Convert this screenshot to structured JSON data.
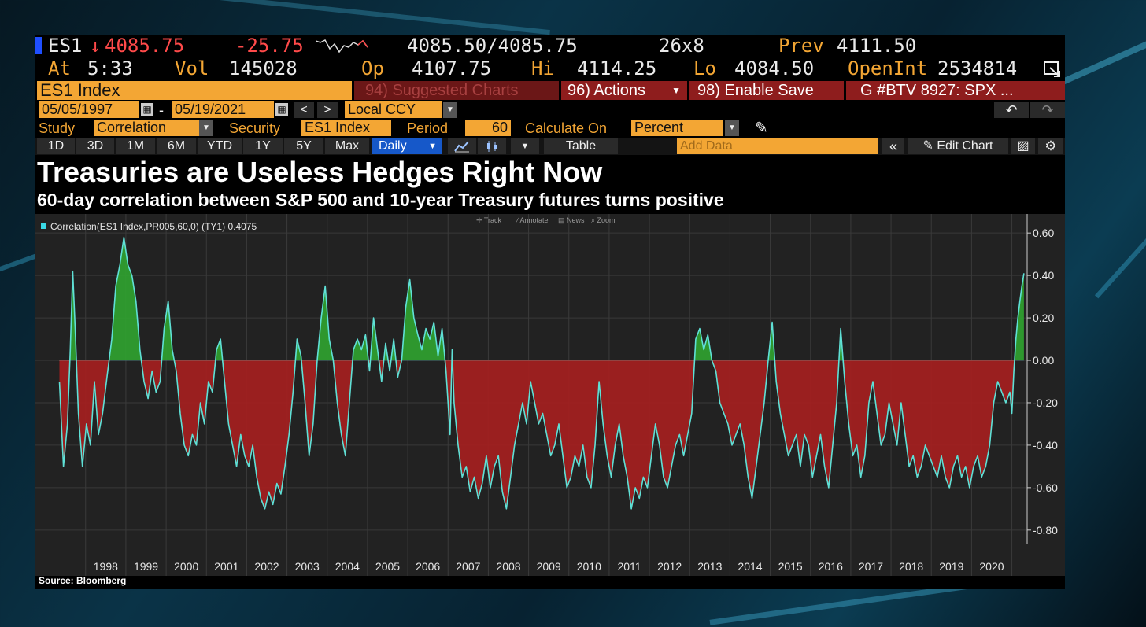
{
  "ticker": {
    "symbol": "ES1",
    "arrow": "↓",
    "last": "4085.75",
    "change": "-25.75",
    "bid_ask": "4085.50/4085.75",
    "size": "26x8",
    "prev_label": "Prev",
    "prev": "4111.50"
  },
  "stats": {
    "at_label": "At",
    "time": "5:33",
    "vol_label": "Vol",
    "vol": "145028",
    "op_label": "Op",
    "op": "4107.75",
    "hi_label": "Hi",
    "hi": "4114.25",
    "lo_label": "Lo",
    "lo": "4084.50",
    "openint_label": "OpenInt",
    "openint": "2534814"
  },
  "command": {
    "security": "ES1 Index",
    "suggested": "94) Suggested Charts",
    "actions": "96) Actions",
    "enable_save": "98) Enable Save",
    "news": "G #BTV 8927: SPX ..."
  },
  "range": {
    "start": "05/05/1997",
    "dash": "-",
    "end": "05/19/2021",
    "currency": "Local CCY"
  },
  "study": {
    "study_label": "Study",
    "study": "Correlation",
    "security_label": "Security",
    "security": "ES1 Index",
    "period_label": "Period",
    "period": "60",
    "calc_label": "Calculate On",
    "calc": "Percent"
  },
  "toolbar": {
    "periods": [
      "1D",
      "3D",
      "1M",
      "6M",
      "YTD",
      "1Y",
      "5Y",
      "Max"
    ],
    "freq": "Daily",
    "table": "Table",
    "add_data": "Add Data",
    "edit_chart": "Edit Chart"
  },
  "plot_tools": [
    "Track",
    "Annotate",
    "News",
    "Zoom"
  ],
  "colors": {
    "positive_fill": "#2f9e2f",
    "negative_fill": "#a12020",
    "line": "#5fe0d6",
    "accent": "#f3a634"
  },
  "chart_data": {
    "type": "area",
    "title": "Treasuries are Useless Hedges Right Now",
    "subtitle": "60-day correlation between S&P 500 and 10-year Treasury futures turns positive",
    "legend": "Correlation(ES1 Index,PR005,60,0) (TY1) 0.4075",
    "series_name": "Correlation(ES1 Index,PR005,60,0) (TY1)",
    "last_value": 0.4075,
    "x_labels": [
      "1998",
      "1999",
      "2000",
      "2001",
      "2002",
      "2003",
      "2004",
      "2005",
      "2006",
      "2007",
      "2008",
      "2009",
      "2010",
      "2011",
      "2012",
      "2013",
      "2014",
      "2015",
      "2016",
      "2017",
      "2018",
      "2019",
      "2020"
    ],
    "y_ticks": [
      "0.60",
      "0.40",
      "0.20",
      "0.00",
      "-0.20",
      "-0.40",
      "-0.60",
      "-0.80"
    ],
    "ylim": [
      -0.86,
      0.66
    ],
    "xlim": [
      1997.34,
      2021.38
    ],
    "grid": true,
    "source": "Source: Bloomberg",
    "points": [
      [
        1997.35,
        -0.1
      ],
      [
        1997.45,
        -0.5
      ],
      [
        1997.55,
        -0.3
      ],
      [
        1997.62,
        0.05
      ],
      [
        1997.68,
        0.42
      ],
      [
        1997.74,
        0.15
      ],
      [
        1997.82,
        -0.25
      ],
      [
        1997.92,
        -0.5
      ],
      [
        1998.02,
        -0.3
      ],
      [
        1998.12,
        -0.4
      ],
      [
        1998.22,
        -0.1
      ],
      [
        1998.32,
        -0.35
      ],
      [
        1998.42,
        -0.25
      ],
      [
        1998.55,
        -0.05
      ],
      [
        1998.65,
        0.1
      ],
      [
        1998.75,
        0.35
      ],
      [
        1998.85,
        0.45
      ],
      [
        1998.95,
        0.58
      ],
      [
        1999.05,
        0.45
      ],
      [
        1999.15,
        0.4
      ],
      [
        1999.25,
        0.28
      ],
      [
        1999.35,
        0.05
      ],
      [
        1999.45,
        -0.1
      ],
      [
        1999.55,
        -0.18
      ],
      [
        1999.65,
        -0.05
      ],
      [
        1999.75,
        -0.15
      ],
      [
        1999.85,
        -0.1
      ],
      [
        1999.95,
        0.15
      ],
      [
        2000.05,
        0.28
      ],
      [
        2000.15,
        0.05
      ],
      [
        2000.25,
        -0.05
      ],
      [
        2000.35,
        -0.25
      ],
      [
        2000.45,
        -0.4
      ],
      [
        2000.55,
        -0.45
      ],
      [
        2000.65,
        -0.35
      ],
      [
        2000.75,
        -0.4
      ],
      [
        2000.85,
        -0.2
      ],
      [
        2000.95,
        -0.3
      ],
      [
        2001.05,
        -0.1
      ],
      [
        2001.15,
        -0.15
      ],
      [
        2001.25,
        0.05
      ],
      [
        2001.35,
        0.1
      ],
      [
        2001.45,
        -0.1
      ],
      [
        2001.55,
        -0.3
      ],
      [
        2001.65,
        -0.4
      ],
      [
        2001.75,
        -0.5
      ],
      [
        2001.85,
        -0.35
      ],
      [
        2001.95,
        -0.45
      ],
      [
        2002.05,
        -0.5
      ],
      [
        2002.15,
        -0.4
      ],
      [
        2002.25,
        -0.55
      ],
      [
        2002.35,
        -0.65
      ],
      [
        2002.45,
        -0.7
      ],
      [
        2002.55,
        -0.62
      ],
      [
        2002.65,
        -0.68
      ],
      [
        2002.75,
        -0.58
      ],
      [
        2002.85,
        -0.63
      ],
      [
        2002.95,
        -0.5
      ],
      [
        2003.05,
        -0.35
      ],
      [
        2003.15,
        -0.15
      ],
      [
        2003.25,
        0.1
      ],
      [
        2003.35,
        0.02
      ],
      [
        2003.45,
        -0.2
      ],
      [
        2003.55,
        -0.45
      ],
      [
        2003.65,
        -0.3
      ],
      [
        2003.75,
        0.0
      ],
      [
        2003.85,
        0.2
      ],
      [
        2003.95,
        0.35
      ],
      [
        2004.05,
        0.1
      ],
      [
        2004.15,
        0.0
      ],
      [
        2004.25,
        -0.2
      ],
      [
        2004.35,
        -0.35
      ],
      [
        2004.45,
        -0.45
      ],
      [
        2004.55,
        -0.2
      ],
      [
        2004.65,
        0.05
      ],
      [
        2004.75,
        0.1
      ],
      [
        2004.85,
        0.05
      ],
      [
        2004.95,
        0.12
      ],
      [
        2005.05,
        -0.05
      ],
      [
        2005.15,
        0.2
      ],
      [
        2005.25,
        0.05
      ],
      [
        2005.35,
        -0.1
      ],
      [
        2005.45,
        0.08
      ],
      [
        2005.55,
        -0.05
      ],
      [
        2005.65,
        0.1
      ],
      [
        2005.75,
        -0.08
      ],
      [
        2005.85,
        0.0
      ],
      [
        2005.95,
        0.25
      ],
      [
        2006.05,
        0.38
      ],
      [
        2006.15,
        0.2
      ],
      [
        2006.25,
        0.12
      ],
      [
        2006.35,
        0.05
      ],
      [
        2006.45,
        0.15
      ],
      [
        2006.55,
        0.1
      ],
      [
        2006.65,
        0.18
      ],
      [
        2006.75,
        0.02
      ],
      [
        2006.85,
        0.15
      ],
      [
        2006.95,
        -0.05
      ],
      [
        2007.05,
        -0.35
      ],
      [
        2007.1,
        0.05
      ],
      [
        2007.15,
        -0.2
      ],
      [
        2007.25,
        -0.4
      ],
      [
        2007.35,
        -0.55
      ],
      [
        2007.45,
        -0.5
      ],
      [
        2007.55,
        -0.62
      ],
      [
        2007.65,
        -0.55
      ],
      [
        2007.75,
        -0.65
      ],
      [
        2007.85,
        -0.58
      ],
      [
        2007.95,
        -0.45
      ],
      [
        2008.05,
        -0.6
      ],
      [
        2008.15,
        -0.5
      ],
      [
        2008.25,
        -0.45
      ],
      [
        2008.35,
        -0.62
      ],
      [
        2008.45,
        -0.7
      ],
      [
        2008.55,
        -0.55
      ],
      [
        2008.65,
        -0.4
      ],
      [
        2008.75,
        -0.3
      ],
      [
        2008.85,
        -0.2
      ],
      [
        2008.95,
        -0.3
      ],
      [
        2009.05,
        -0.1
      ],
      [
        2009.15,
        -0.2
      ],
      [
        2009.25,
        -0.3
      ],
      [
        2009.35,
        -0.25
      ],
      [
        2009.45,
        -0.35
      ],
      [
        2009.55,
        -0.45
      ],
      [
        2009.65,
        -0.4
      ],
      [
        2009.75,
        -0.3
      ],
      [
        2009.85,
        -0.45
      ],
      [
        2009.95,
        -0.6
      ],
      [
        2010.05,
        -0.55
      ],
      [
        2010.15,
        -0.45
      ],
      [
        2010.25,
        -0.5
      ],
      [
        2010.35,
        -0.4
      ],
      [
        2010.45,
        -0.55
      ],
      [
        2010.55,
        -0.6
      ],
      [
        2010.65,
        -0.4
      ],
      [
        2010.75,
        -0.1
      ],
      [
        2010.85,
        -0.3
      ],
      [
        2010.95,
        -0.45
      ],
      [
        2011.05,
        -0.55
      ],
      [
        2011.15,
        -0.4
      ],
      [
        2011.25,
        -0.3
      ],
      [
        2011.35,
        -0.45
      ],
      [
        2011.45,
        -0.55
      ],
      [
        2011.55,
        -0.7
      ],
      [
        2011.65,
        -0.6
      ],
      [
        2011.75,
        -0.65
      ],
      [
        2011.85,
        -0.55
      ],
      [
        2011.95,
        -0.6
      ],
      [
        2012.05,
        -0.45
      ],
      [
        2012.15,
        -0.3
      ],
      [
        2012.25,
        -0.4
      ],
      [
        2012.35,
        -0.55
      ],
      [
        2012.45,
        -0.6
      ],
      [
        2012.55,
        -0.5
      ],
      [
        2012.65,
        -0.4
      ],
      [
        2012.75,
        -0.35
      ],
      [
        2012.85,
        -0.45
      ],
      [
        2012.95,
        -0.35
      ],
      [
        2013.05,
        -0.25
      ],
      [
        2013.15,
        0.1
      ],
      [
        2013.25,
        0.15
      ],
      [
        2013.35,
        0.05
      ],
      [
        2013.45,
        0.12
      ],
      [
        2013.55,
        0.0
      ],
      [
        2013.65,
        -0.05
      ],
      [
        2013.75,
        -0.2
      ],
      [
        2013.85,
        -0.25
      ],
      [
        2013.95,
        -0.3
      ],
      [
        2014.05,
        -0.4
      ],
      [
        2014.15,
        -0.35
      ],
      [
        2014.25,
        -0.3
      ],
      [
        2014.35,
        -0.4
      ],
      [
        2014.45,
        -0.55
      ],
      [
        2014.55,
        -0.65
      ],
      [
        2014.65,
        -0.5
      ],
      [
        2014.75,
        -0.35
      ],
      [
        2014.85,
        -0.2
      ],
      [
        2014.95,
        0.0
      ],
      [
        2015.05,
        0.18
      ],
      [
        2015.15,
        -0.1
      ],
      [
        2015.25,
        -0.25
      ],
      [
        2015.35,
        -0.35
      ],
      [
        2015.45,
        -0.45
      ],
      [
        2015.55,
        -0.4
      ],
      [
        2015.65,
        -0.35
      ],
      [
        2015.75,
        -0.5
      ],
      [
        2015.85,
        -0.35
      ],
      [
        2015.95,
        -0.4
      ],
      [
        2016.05,
        -0.55
      ],
      [
        2016.15,
        -0.45
      ],
      [
        2016.25,
        -0.35
      ],
      [
        2016.35,
        -0.5
      ],
      [
        2016.45,
        -0.6
      ],
      [
        2016.55,
        -0.4
      ],
      [
        2016.65,
        -0.2
      ],
      [
        2016.75,
        0.15
      ],
      [
        2016.85,
        -0.1
      ],
      [
        2016.95,
        -0.3
      ],
      [
        2017.05,
        -0.45
      ],
      [
        2017.15,
        -0.4
      ],
      [
        2017.25,
        -0.55
      ],
      [
        2017.35,
        -0.45
      ],
      [
        2017.45,
        -0.2
      ],
      [
        2017.55,
        -0.1
      ],
      [
        2017.65,
        -0.25
      ],
      [
        2017.75,
        -0.4
      ],
      [
        2017.85,
        -0.35
      ],
      [
        2017.95,
        -0.2
      ],
      [
        2018.05,
        -0.3
      ],
      [
        2018.15,
        -0.4
      ],
      [
        2018.25,
        -0.2
      ],
      [
        2018.35,
        -0.35
      ],
      [
        2018.45,
        -0.5
      ],
      [
        2018.55,
        -0.45
      ],
      [
        2018.65,
        -0.55
      ],
      [
        2018.75,
        -0.5
      ],
      [
        2018.85,
        -0.4
      ],
      [
        2018.95,
        -0.45
      ],
      [
        2019.05,
        -0.5
      ],
      [
        2019.15,
        -0.55
      ],
      [
        2019.25,
        -0.45
      ],
      [
        2019.35,
        -0.55
      ],
      [
        2019.45,
        -0.6
      ],
      [
        2019.55,
        -0.5
      ],
      [
        2019.65,
        -0.45
      ],
      [
        2019.75,
        -0.55
      ],
      [
        2019.85,
        -0.5
      ],
      [
        2019.95,
        -0.6
      ],
      [
        2020.05,
        -0.5
      ],
      [
        2020.15,
        -0.45
      ],
      [
        2020.25,
        -0.55
      ],
      [
        2020.35,
        -0.5
      ],
      [
        2020.45,
        -0.4
      ],
      [
        2020.55,
        -0.2
      ],
      [
        2020.65,
        -0.1
      ],
      [
        2020.75,
        -0.15
      ],
      [
        2020.85,
        -0.2
      ],
      [
        2020.95,
        -0.15
      ],
      [
        2021.0,
        -0.25
      ],
      [
        2021.05,
        -0.05
      ],
      [
        2021.1,
        0.1
      ],
      [
        2021.15,
        0.2
      ],
      [
        2021.2,
        0.28
      ],
      [
        2021.25,
        0.35
      ],
      [
        2021.3,
        0.41
      ]
    ]
  }
}
